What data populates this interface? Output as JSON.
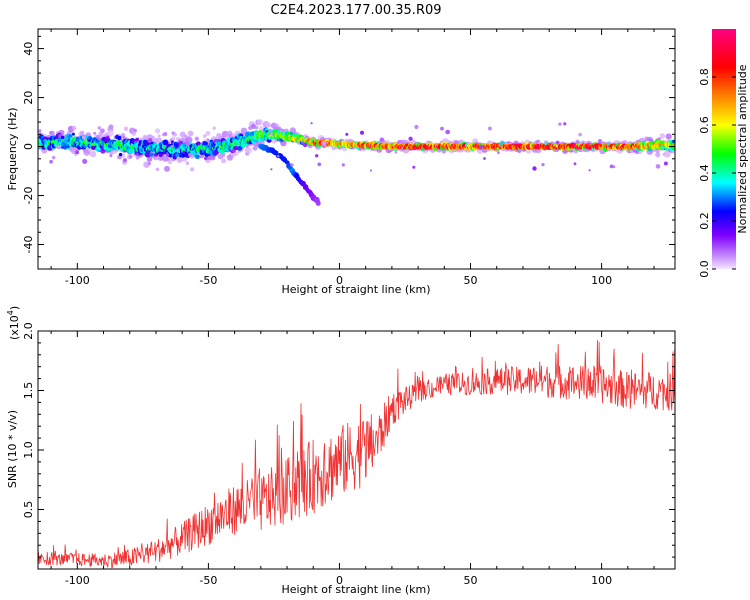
{
  "title": "C2E4.2023.177.00.35.R09",
  "chart_data": [
    {
      "type": "heatmap",
      "xlabel": "Height of straight line (km)",
      "ylabel": "Frequency (Hz)",
      "xlim": [
        -115,
        128
      ],
      "ylim": [
        -50,
        48
      ],
      "xticks": [
        -100,
        -50,
        0,
        50,
        100
      ],
      "xtick_labels": [
        "-100",
        "-50",
        "0",
        "50",
        "100"
      ],
      "yticks": [
        40,
        20,
        0,
        -20,
        -40
      ],
      "ytick_labels": [
        "40",
        "20",
        "0",
        "-20",
        "-40"
      ],
      "colorbar": {
        "label": "Normalized spectral amplitude",
        "range": [
          0,
          1
        ],
        "ticks": [
          0.0,
          0.2,
          0.4,
          0.6,
          0.8
        ],
        "tick_labels": [
          "0.0",
          "0.2",
          "0.4",
          "0.6",
          "0.8"
        ],
        "colors": [
          "#f4e4ff",
          "#8000ff",
          "#0000ff",
          "#00ffff",
          "#00ff00",
          "#ffff00",
          "#ff8000",
          "#ff0000",
          "#ff0080"
        ]
      },
      "ridge": {
        "x": [
          -112,
          -100,
          -90,
          -80,
          -70,
          -60,
          -50,
          -42,
          -35,
          -30,
          -25,
          -20,
          -15,
          -10,
          -5,
          0,
          10,
          20,
          40,
          60,
          80,
          100,
          110,
          120,
          128
        ],
        "y": [
          1.5,
          2,
          1,
          0,
          -1,
          -1,
          -1,
          0.5,
          3,
          5,
          5,
          4,
          3,
          1.5,
          1.5,
          1,
          0.5,
          0,
          0,
          0,
          0,
          0,
          0,
          0.5,
          0.5
        ],
        "amplitude": [
          0.4,
          0.45,
          0.4,
          0.4,
          0.35,
          0.35,
          0.4,
          0.4,
          0.45,
          0.5,
          0.55,
          0.6,
          0.7,
          0.85,
          0.85,
          0.75,
          0.85,
          0.9,
          0.95,
          0.95,
          0.95,
          0.95,
          0.9,
          0.75,
          0.6
        ],
        "spread": [
          5,
          5,
          5,
          6,
          6,
          6,
          6,
          6,
          5,
          5,
          4,
          3,
          2,
          1.5,
          1.5,
          1.5,
          1.5,
          1.5,
          1.5,
          1.5,
          1.5,
          1.5,
          1.5,
          3,
          3
        ]
      },
      "branch": {
        "x": [
          -30,
          -25,
          -20,
          -18,
          -15,
          -12,
          -8
        ],
        "y": [
          0,
          -2,
          -6,
          -10,
          -14,
          -18,
          -23
        ],
        "amplitude": [
          0.3,
          0.25,
          0.25,
          0.3,
          0.2,
          0.15,
          0.1
        ]
      }
    },
    {
      "type": "line",
      "xlabel": "Height of straight line (km)",
      "ylabel": "SNR (10 * v/v)",
      "y_multiplier": "(x10",
      "y_exponent": "4",
      "y_multiplier_close": ")",
      "xlim": [
        -115,
        128
      ],
      "ylim": [
        0,
        2.0
      ],
      "xticks": [
        -100,
        -50,
        0,
        50,
        100
      ],
      "xtick_labels": [
        "-100",
        "-50",
        "0",
        "50",
        "100"
      ],
      "yticks": [
        0.5,
        1.0,
        1.5,
        2.0
      ],
      "ytick_labels": [
        "0.5",
        "1.0",
        "1.5",
        "2.0"
      ],
      "color": "#f03232",
      "envelope": {
        "x": [
          -115,
          -100,
          -90,
          -80,
          -70,
          -60,
          -50,
          -40,
          -30,
          -20,
          -10,
          0,
          10,
          15,
          20,
          30,
          40,
          50,
          60,
          80,
          100,
          110,
          120,
          128
        ],
        "y": [
          0.08,
          0.08,
          0.07,
          0.09,
          0.15,
          0.25,
          0.38,
          0.5,
          0.55,
          0.65,
          0.78,
          0.9,
          1.0,
          1.1,
          1.35,
          1.48,
          1.55,
          1.56,
          1.58,
          1.58,
          1.55,
          1.5,
          1.5,
          1.48
        ]
      },
      "noise": {
        "x": [
          -115,
          -90,
          -70,
          -50,
          -30,
          -10,
          10,
          20,
          30,
          50,
          80,
          100,
          128
        ],
        "amplitude": [
          0.05,
          0.06,
          0.1,
          0.18,
          0.25,
          0.32,
          0.3,
          0.15,
          0.08,
          0.1,
          0.14,
          0.16,
          0.16
        ]
      }
    }
  ]
}
